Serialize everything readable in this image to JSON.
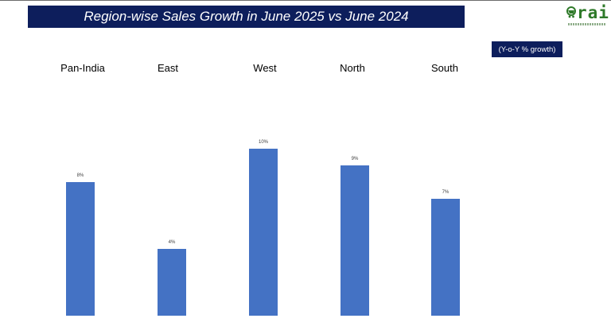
{
  "header": {
    "title": "Region-wise Sales Growth in June 2025 vs June 2024",
    "unit_note": "(Y-o-Y % growth)",
    "logo_text": "rai"
  },
  "colors": {
    "bar": "#4472c4",
    "title_bg": "#0d1e5c",
    "logo": "#2f7a2a"
  },
  "chart_data": {
    "type": "bar",
    "title": "Region-wise Sales Growth in June 2025 vs June 2024",
    "categories": [
      "Pan-India",
      "East",
      "West",
      "North",
      "South"
    ],
    "values": [
      8,
      4,
      10,
      9,
      7
    ],
    "data_labels": [
      "8%",
      "4%",
      "10%",
      "9%",
      "7%"
    ],
    "xlabel": "",
    "ylabel": "",
    "ylim": [
      0,
      10
    ],
    "grid": false,
    "legend": "none",
    "category_labels_position": "top"
  }
}
